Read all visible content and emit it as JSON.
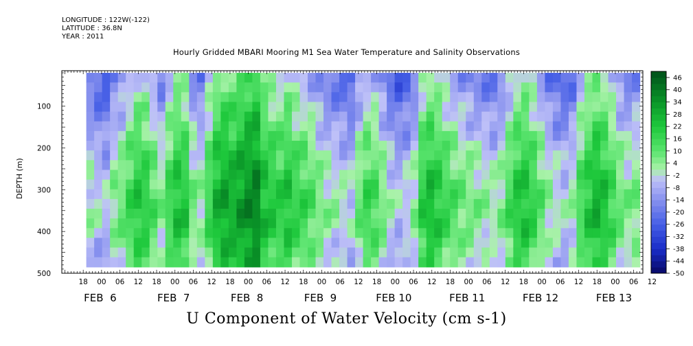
{
  "header": {
    "longitude": "LONGITUDE : 122W(-122)",
    "latitude": "LATITUDE : 36.8N",
    "year": "YEAR : 2011"
  },
  "chart_data": {
    "type": "heatmap",
    "title": "Hourly Gridded MBARI Mooring M1 Sea Water Temperature and Salinity Observations",
    "xlabel": "U Component of Water Velocity (cm s-1)",
    "ylabel": "DEPTH (m)",
    "y_ticks": [
      "100",
      "200",
      "300",
      "400",
      "500"
    ],
    "y_range": [
      500,
      15
    ],
    "data_depth_range": [
      20,
      485
    ],
    "x_hour_ticks": [
      "18",
      "00",
      "06",
      "12",
      "18",
      "00",
      "06",
      "12",
      "18",
      "00",
      "06",
      "12",
      "18",
      "00",
      "06",
      "12",
      "18",
      "00",
      "06",
      "12",
      "18",
      "00",
      "06",
      "12",
      "18",
      "00",
      "06",
      "12",
      "18",
      "00",
      "06",
      "12"
    ],
    "x_day_labels": [
      "FEB  6",
      "FEB  7",
      "FEB  8",
      "FEB  9",
      "FEB 10",
      "FEB 11",
      "FEB 12",
      "FEB 13"
    ],
    "x_range_hours": [
      -13,
      177
    ],
    "data_time_range_hours": [
      -5,
      176
    ],
    "colorbar": {
      "levels": [
        "46",
        "40",
        "34",
        "28",
        "22",
        "16",
        "10",
        "4",
        "-2",
        "-8",
        "-14",
        "-20",
        "-26",
        "-32",
        "-38",
        "-44",
        "-50"
      ],
      "min": -50,
      "max": 49
    },
    "column_means_cm_s": [
      -12,
      -16,
      -18,
      -8,
      -4,
      4,
      10,
      8,
      0,
      -8,
      4,
      12,
      10,
      -6,
      -10,
      4,
      16,
      20,
      18,
      22,
      26,
      28,
      14,
      10,
      8,
      12,
      6,
      4,
      0,
      -6,
      -10,
      -12,
      -14,
      -16,
      -4,
      4,
      2,
      -6,
      -14,
      -18,
      -16,
      -10,
      8,
      14,
      10,
      4,
      0,
      -4,
      -6,
      -8,
      -10,
      -12,
      -8,
      2,
      10,
      12,
      6,
      -2,
      -10,
      -14,
      -16,
      -12,
      2,
      10,
      16,
      12,
      4,
      -4,
      -8,
      -6
    ],
    "depth_profile_cm_s": [
      -12,
      -10,
      -7,
      -4,
      -2,
      0,
      3,
      6,
      8,
      10,
      12,
      14,
      15,
      16,
      16,
      15,
      13,
      10,
      8,
      6
    ],
    "colors": {
      "strong_negative": "#0a0a70",
      "negative": "#3a4fe0",
      "weak_negative": "#b4b8f4",
      "weak_positive": "#9cf09c",
      "positive": "#26d24a",
      "strong_positive": "#005a1a"
    }
  }
}
